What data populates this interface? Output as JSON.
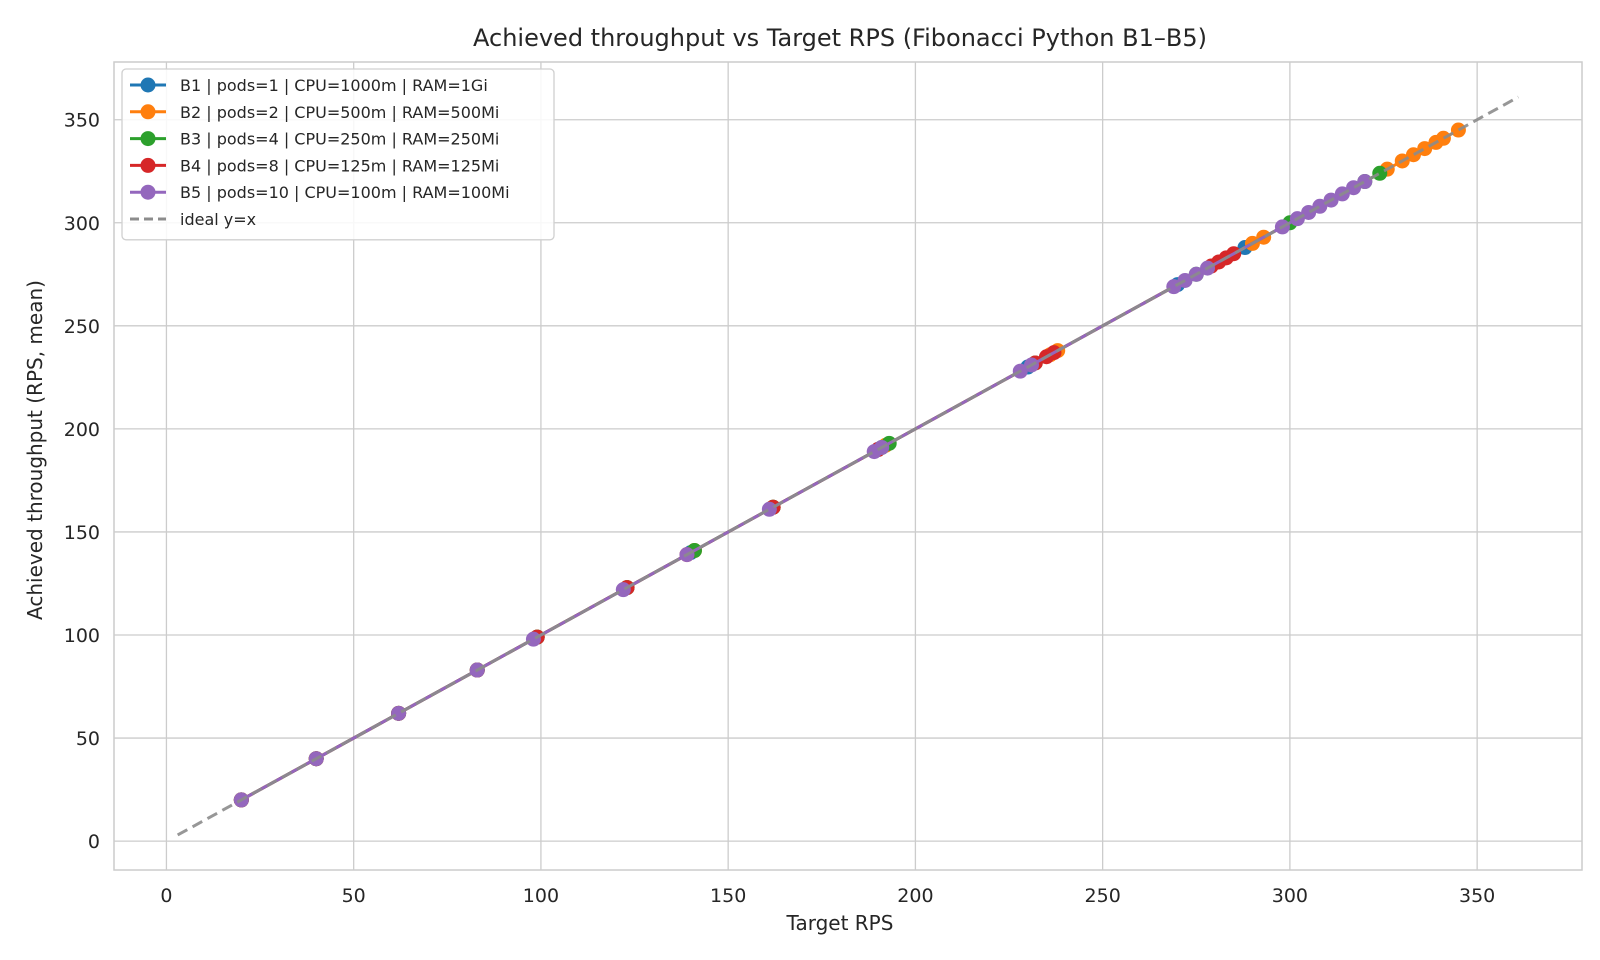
{
  "chart_data": {
    "type": "line",
    "title": "Achieved throughput vs Target RPS (Fibonacci Python B1–B5)",
    "xlabel": "Target RPS",
    "ylabel": "Achieved throughput (RPS, mean)",
    "xlim": [
      -14,
      378
    ],
    "ylim": [
      -14,
      378
    ],
    "xticks": [
      0,
      50,
      100,
      150,
      200,
      250,
      300,
      350
    ],
    "yticks": [
      0,
      50,
      100,
      150,
      200,
      250,
      300,
      350
    ],
    "grid": true,
    "legend_position": "top-left",
    "series": [
      {
        "name": "B1 | pods=1 | CPU=1000m | RAM=1Gi",
        "color": "#1f77b4",
        "x": [
          20,
          40,
          62,
          83,
          99,
          123,
          140,
          162,
          190,
          230,
          270,
          288
        ],
        "y": [
          20,
          40,
          62,
          83,
          99,
          123,
          140,
          162,
          190,
          230,
          270,
          288
        ]
      },
      {
        "name": "B2 | pods=2 | CPU=500m | RAM=500Mi",
        "color": "#ff7f0e",
        "x": [
          20,
          40,
          62,
          83,
          99,
          123,
          141,
          162,
          192,
          236,
          238,
          290,
          293,
          326,
          330,
          333,
          336,
          339,
          341,
          345
        ],
        "y": [
          20,
          40,
          62,
          83,
          99,
          123,
          141,
          162,
          192,
          236,
          238,
          290,
          293,
          326,
          330,
          333,
          336,
          339,
          341,
          345
        ]
      },
      {
        "name": "B3 | pods=4 | CPU=250m | RAM=250Mi",
        "color": "#2ca02c",
        "x": [
          20,
          40,
          62,
          83,
          99,
          123,
          141,
          162,
          191,
          193,
          232,
          275,
          300,
          320,
          324
        ],
        "y": [
          20,
          40,
          62,
          83,
          99,
          123,
          141,
          162,
          191,
          193,
          232,
          275,
          300,
          320,
          324
        ]
      },
      {
        "name": "B4 | pods=8 | CPU=125m | RAM=125Mi",
        "color": "#d62728",
        "x": [
          20,
          40,
          62,
          83,
          99,
          123,
          139,
          162,
          190,
          232,
          235,
          237,
          279,
          281,
          283,
          285
        ],
        "y": [
          20,
          40,
          62,
          83,
          99,
          123,
          139,
          162,
          190,
          232,
          235,
          237,
          279,
          281,
          283,
          285
        ]
      },
      {
        "name": "B5 | pods=10 | CPU=100m | RAM=100Mi",
        "color": "#9467bd",
        "x": [
          20,
          40,
          62,
          83,
          98,
          122,
          139,
          161,
          189,
          191,
          228,
          231,
          269,
          272,
          275,
          278,
          298,
          302,
          305,
          308,
          311,
          314,
          317,
          320
        ],
        "y": [
          20,
          40,
          62,
          83,
          98,
          122,
          139,
          161,
          189,
          191,
          228,
          231,
          269,
          272,
          275,
          278,
          298,
          302,
          305,
          308,
          311,
          314,
          317,
          320
        ]
      }
    ],
    "reference_line": {
      "name": "ideal y=x",
      "color": "#8c8c8c",
      "x": [
        3,
        361
      ],
      "y": [
        3,
        361
      ]
    }
  }
}
